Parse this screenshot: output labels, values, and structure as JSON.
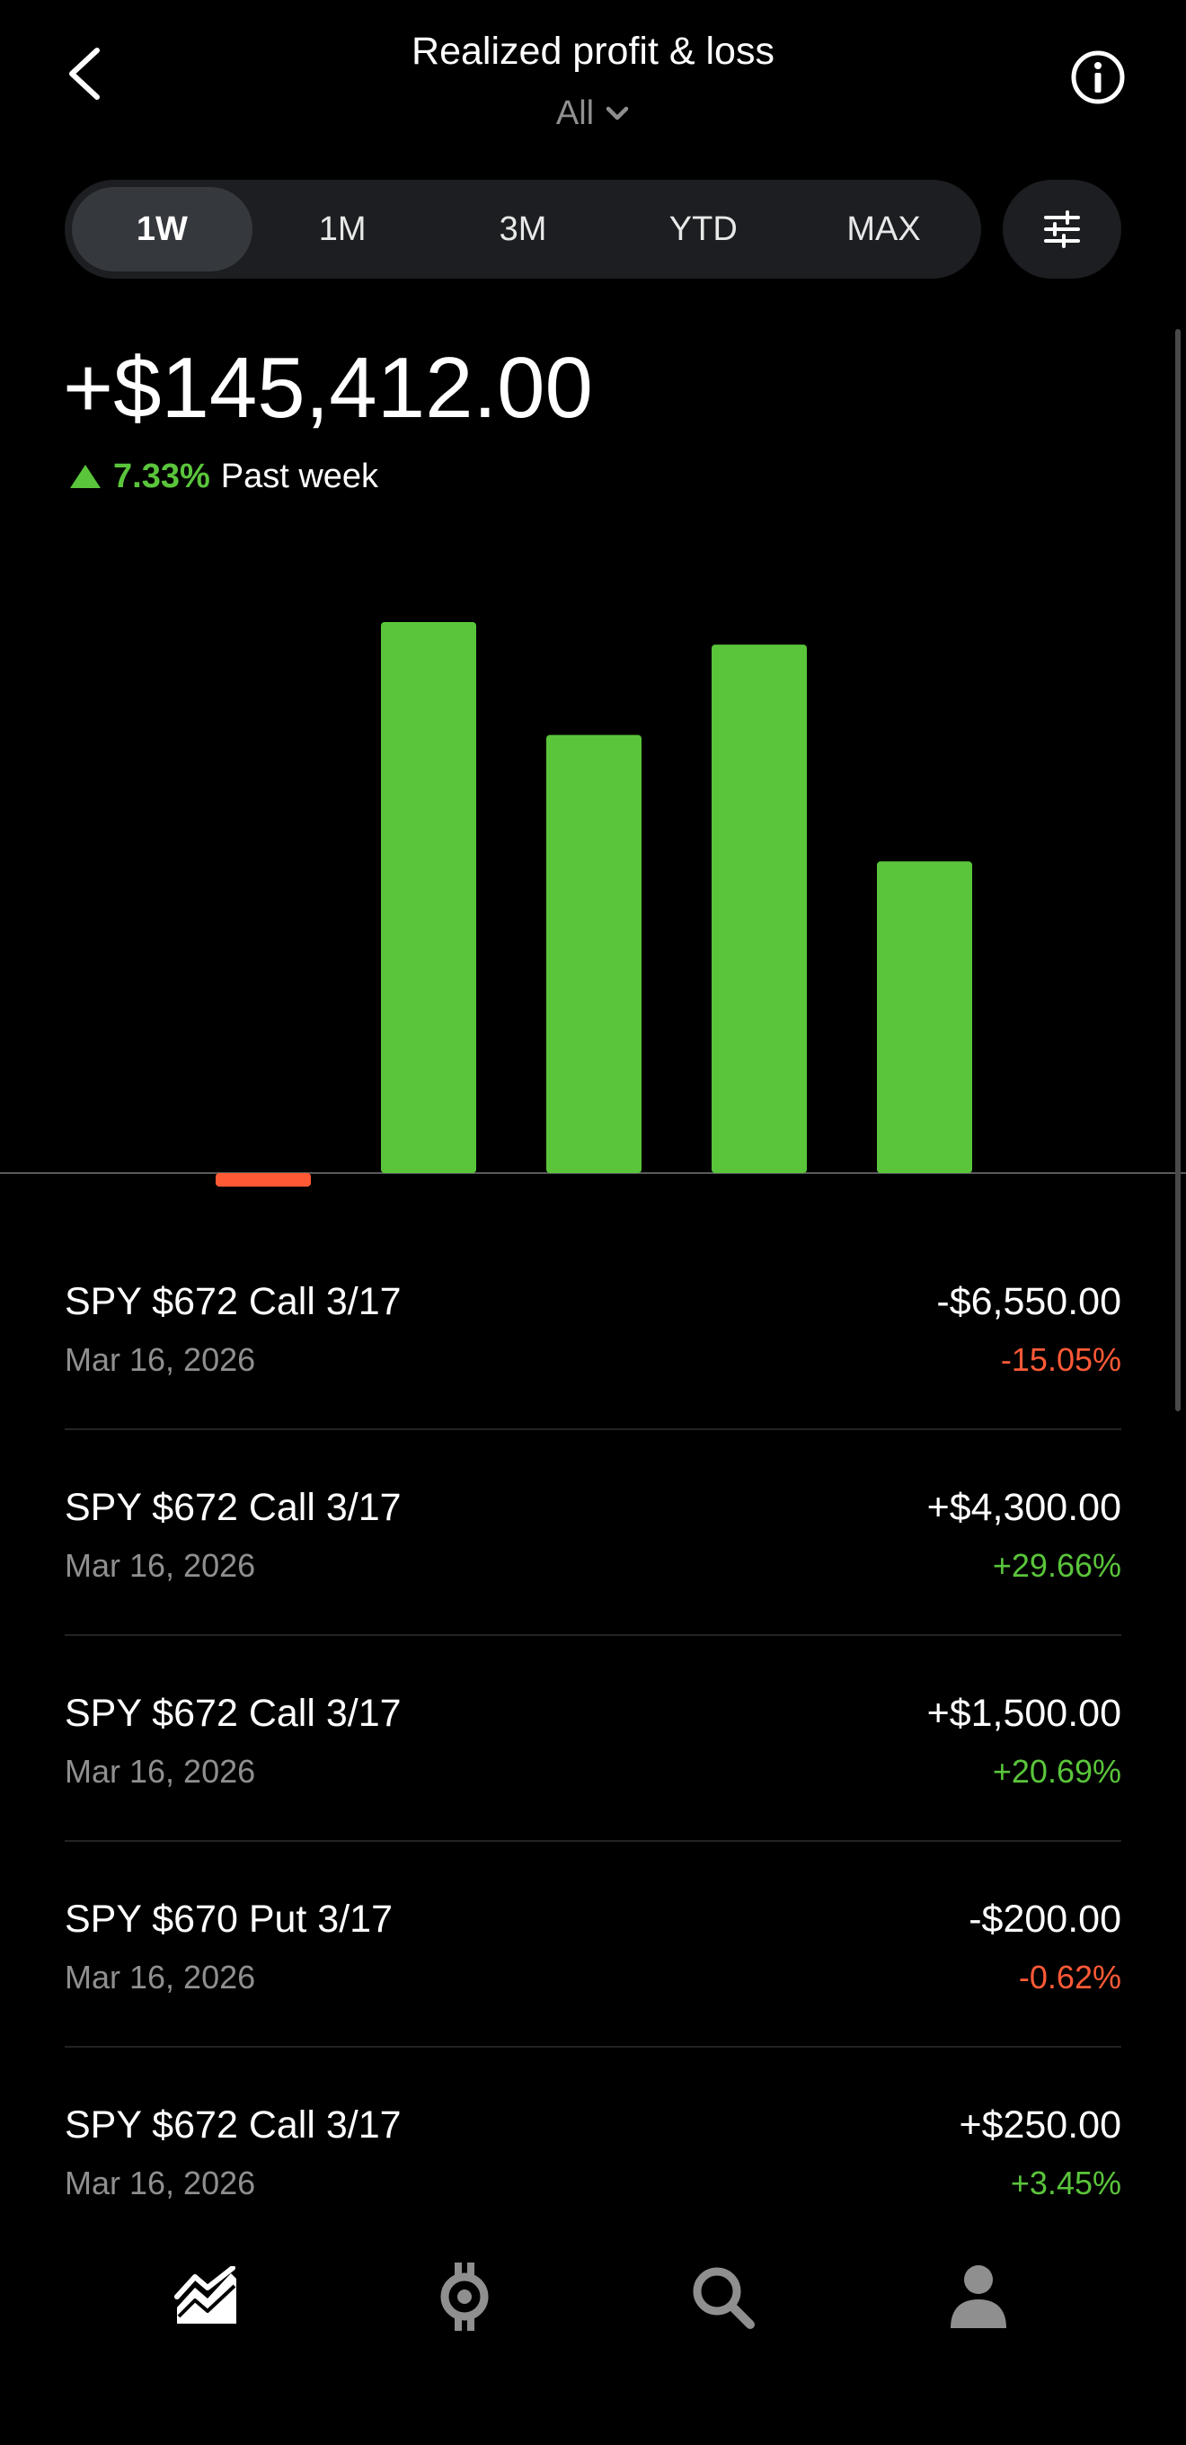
{
  "header": {
    "title": "Realized profit & loss",
    "filter_label": "All",
    "back_icon": "back-chevron-icon",
    "info_icon": "info-icon",
    "filter_icon": "chevron-down-icon"
  },
  "range": {
    "tabs": [
      "1W",
      "1M",
      "3M",
      "YTD",
      "MAX"
    ],
    "active": "1W",
    "filters_icon": "sliders-icon"
  },
  "summary": {
    "total": "+$145,412.00",
    "change_pct": "7.33%",
    "change_period": "Past week",
    "direction_icon": "up-triangle-icon"
  },
  "colors": {
    "positive": "#5ac53b",
    "negative": "#ff5a36",
    "background": "#000000",
    "muted": "#8f8f8f",
    "tab_bg": "#1c1e21",
    "tab_active_bg": "#35383c"
  },
  "chart_data": {
    "type": "bar",
    "title": "",
    "xlabel": "",
    "ylabel": "",
    "series": [
      {
        "values": [
          0,
          -1500,
          61000,
          48500,
          58500,
          34500
        ]
      }
    ],
    "grid": false,
    "legend": "none"
  },
  "transactions": [
    {
      "name": "SPY $672 Call 3/17",
      "date": "Mar 16, 2026",
      "amount": "-$6,550.00",
      "pct": "-15.05%",
      "direction": "neg"
    },
    {
      "name": "SPY $672 Call 3/17",
      "date": "Mar 16, 2026",
      "amount": "+$4,300.00",
      "pct": "+29.66%",
      "direction": "pos"
    },
    {
      "name": "SPY $672 Call 3/17",
      "date": "Mar 16, 2026",
      "amount": "+$1,500.00",
      "pct": "+20.69%",
      "direction": "pos"
    },
    {
      "name": "SPY $670 Put 3/17",
      "date": "Mar 16, 2026",
      "amount": "-$200.00",
      "pct": "-0.62%",
      "direction": "neg"
    },
    {
      "name": "SPY $672 Call 3/17",
      "date": "Mar 16, 2026",
      "amount": "+$250.00",
      "pct": "+3.45%",
      "direction": "pos"
    }
  ],
  "nav": {
    "items": [
      {
        "icon": "investing-chart-icon",
        "active": true
      },
      {
        "icon": "crypto-icon",
        "active": false
      },
      {
        "icon": "search-icon",
        "active": false
      },
      {
        "icon": "account-icon",
        "active": false
      }
    ]
  }
}
